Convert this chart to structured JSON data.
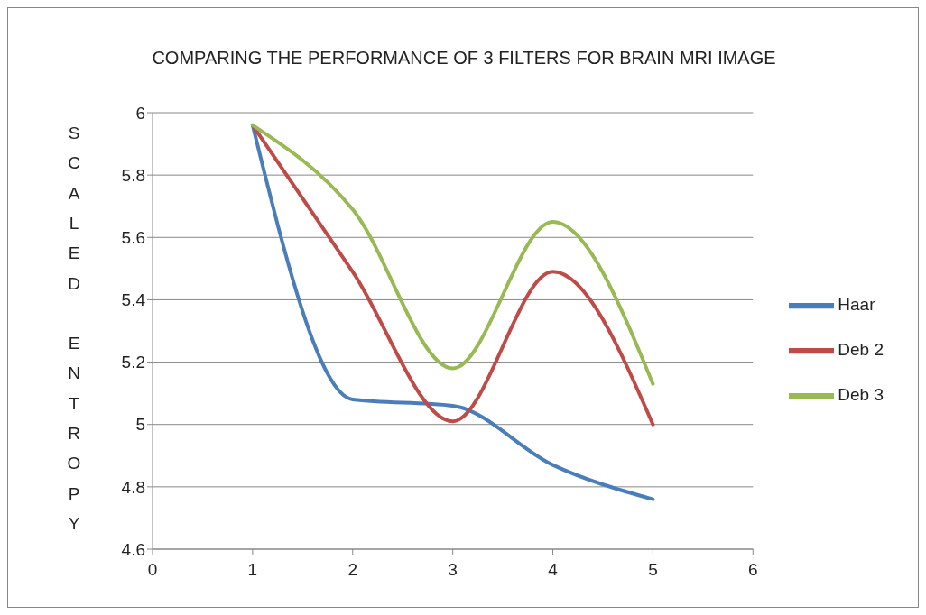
{
  "chart_data": {
    "type": "line",
    "title": "COMPARING THE PERFORMANCE OF 3 FILTERS FOR BRAIN MRI IMAGE",
    "ylabel": "SCALED ENTROPY",
    "x": [
      1,
      2,
      3,
      4,
      5
    ],
    "series": [
      {
        "name": "Haar",
        "color": "#4a7ebb",
        "values": [
          5.96,
          5.08,
          5.06,
          4.87,
          4.76
        ]
      },
      {
        "name": "Deb 2",
        "color": "#be4b48",
        "values": [
          5.96,
          5.49,
          5.01,
          5.49,
          5.0
        ]
      },
      {
        "name": "Deb 3",
        "color": "#98b954",
        "values": [
          5.96,
          5.69,
          5.18,
          5.65,
          5.13
        ]
      }
    ],
    "xlim": [
      0,
      6
    ],
    "xticks": [
      0,
      1,
      2,
      3,
      4,
      5,
      6
    ],
    "ylim": [
      4.6,
      6
    ],
    "yticks": [
      4.6,
      4.8,
      5,
      5.2,
      5.4,
      5.6,
      5.8,
      6
    ],
    "grid": "y",
    "legend": "right",
    "marker": "none",
    "line_style": "solid"
  }
}
